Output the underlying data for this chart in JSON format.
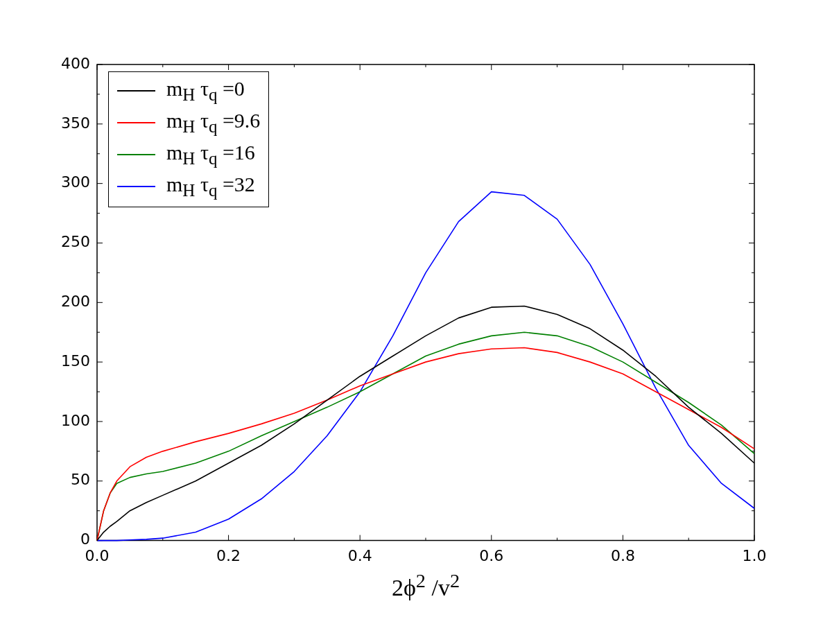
{
  "chart_data": {
    "type": "line",
    "xlabel": "2ϕ$^{2}$ /v$^{2}$",
    "x": [
      0,
      0.01,
      0.02,
      0.03,
      0.05,
      0.075,
      0.1,
      0.15,
      0.2,
      0.25,
      0.3,
      0.35,
      0.4,
      0.45,
      0.5,
      0.55,
      0.6,
      0.65,
      0.7,
      0.75,
      0.8,
      0.85,
      0.9,
      0.95,
      1.0
    ],
    "series": [
      {
        "name": "m$_{H}$ τ$_{q}$ =0",
        "color": "#000000",
        "values": [
          0,
          7,
          12,
          16,
          25,
          32,
          38,
          50,
          65,
          80,
          98,
          118,
          138,
          155,
          172,
          187,
          196,
          197,
          190,
          178,
          160,
          138,
          112,
          90,
          65
        ]
      },
      {
        "name": "m$_{H}$ τ$_{q}$ =9.6",
        "color": "#ff0000",
        "values": [
          0,
          25,
          40,
          50,
          62,
          70,
          75,
          83,
          90,
          98,
          107,
          118,
          130,
          140,
          150,
          157,
          161,
          162,
          158,
          150,
          140,
          125,
          110,
          95,
          77
        ]
      },
      {
        "name": "m$_{H}$ τ$_{q}$ =16",
        "color": "#008000",
        "values": [
          0,
          25,
          40,
          48,
          53,
          56,
          58,
          65,
          75,
          88,
          100,
          112,
          125,
          140,
          155,
          165,
          172,
          175,
          172,
          163,
          150,
          133,
          116,
          97,
          73
        ]
      },
      {
        "name": "m$_{H}$ τ$_{q}$ =32",
        "color": "#0000ff",
        "values": [
          0,
          0,
          0,
          0,
          0.5,
          1,
          2,
          7,
          18,
          35,
          58,
          88,
          125,
          172,
          225,
          268,
          293,
          290,
          270,
          232,
          182,
          128,
          80,
          48,
          27
        ]
      }
    ],
    "xlim": [
      0,
      1.0
    ],
    "xticks": [
      {
        "value": 0,
        "label": "0.0"
      },
      {
        "value": 0.1,
        "label": null
      },
      {
        "value": 0.2,
        "label": "0.2"
      },
      {
        "value": 0.3,
        "label": null
      },
      {
        "value": 0.4,
        "label": "0.4"
      },
      {
        "value": 0.5,
        "label": null
      },
      {
        "value": 0.6,
        "label": "0.6"
      },
      {
        "value": 0.7,
        "label": null
      },
      {
        "value": 0.8,
        "label": "0.8"
      },
      {
        "value": 0.9,
        "label": null
      },
      {
        "value": 1.0,
        "label": "1.0"
      }
    ],
    "ylim": [
      0,
      400
    ],
    "yticks": [
      0,
      {
        "value": 25,
        "label": null
      },
      50,
      {
        "value": 75,
        "label": null
      },
      100,
      {
        "value": 125,
        "label": null
      },
      150,
      {
        "value": 175,
        "label": null
      },
      200,
      {
        "value": 225,
        "label": null
      },
      250,
      {
        "value": 275,
        "label": null
      },
      300,
      {
        "value": 325,
        "label": null
      },
      350,
      {
        "value": 375,
        "label": null
      },
      400
    ],
    "grid": false,
    "legend": "top left",
    "marker": "none",
    "line_style": "solid"
  }
}
